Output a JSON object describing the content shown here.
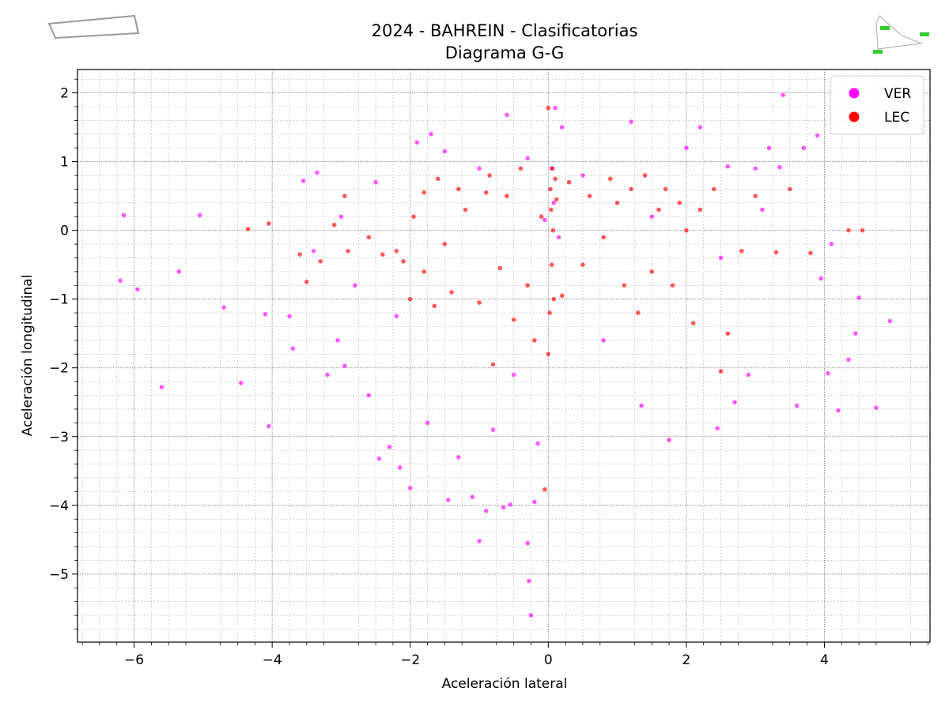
{
  "chart_data": {
    "type": "scatter",
    "title": "2024 - BAHREIN - Clasificatorias",
    "subtitle": "Diagrama G-G",
    "x_label": "Aceleración lateral",
    "y_label": "Aceleración longitudinal",
    "xlim": [
      -6.82,
      5.53
    ],
    "ylim": [
      -5.99,
      2.34
    ],
    "xticks": [
      {
        "value": -6,
        "label": "−6"
      },
      {
        "value": -4,
        "label": "−4"
      },
      {
        "value": -2,
        "label": "−2"
      },
      0,
      2,
      4
    ],
    "yticks": [
      {
        "value": -5,
        "label": "−5"
      },
      {
        "value": -4,
        "label": "−4"
      },
      {
        "value": -3,
        "label": "−3"
      },
      {
        "value": -2,
        "label": "−2"
      },
      {
        "value": -1,
        "label": "−1"
      },
      0,
      1,
      2
    ],
    "xticks_minor": [
      -6.75,
      -6.5,
      -6.25,
      -5.75,
      -5.5,
      -5.25,
      -4.75,
      -4.5,
      -4.25,
      -3.75,
      -3.5,
      -3.25,
      -2.75,
      -2.5,
      -2.25,
      -1.75,
      -1.5,
      -1.25,
      -0.75,
      -0.5,
      -0.25,
      0.25,
      0.5,
      0.75,
      1.25,
      1.5,
      1.75,
      2.25,
      2.5,
      2.75,
      3.25,
      3.5,
      3.75,
      4.25,
      4.5,
      4.75,
      5.25,
      5.5
    ],
    "yticks_minor": [
      -5.8,
      -5.6,
      -5.4,
      -5.2,
      -4.8,
      -4.6,
      -4.4,
      -4.2,
      -3.8,
      -3.6,
      -3.4,
      -3.2,
      -2.8,
      -2.6,
      -2.4,
      -2.2,
      -1.8,
      -1.6,
      -1.4,
      -1.2,
      -0.8,
      -0.6,
      -0.4,
      -0.2,
      0.2,
      0.4,
      0.6,
      0.8,
      1.2,
      1.4,
      1.6,
      1.8,
      2.2
    ],
    "grid": true,
    "legend": "upper right",
    "series": [
      {
        "name": "VER",
        "color": "#ff00ff",
        "x": [
          -6.2,
          -6.15,
          -5.95,
          -5.6,
          -5.35,
          -5.05,
          -4.7,
          -4.45,
          -4.1,
          -4.05,
          -3.75,
          -3.7,
          -3.55,
          -3.35,
          -3.2,
          -3.05,
          -2.95,
          -2.6,
          -2.45,
          -2.3,
          -2.15,
          -2.0,
          -1.75,
          -1.7,
          -1.45,
          -1.3,
          -1.1,
          -1.0,
          -0.9,
          -0.65,
          -0.55,
          -0.3,
          -0.28,
          -0.25,
          -0.2,
          -0.15,
          -0.6,
          0.1,
          0.2,
          -0.3,
          0.05,
          0.08,
          -0.05,
          0.15,
          1.2,
          1.35,
          1.75,
          2.2,
          2.0,
          2.45,
          2.6,
          2.7,
          2.9,
          3.0,
          3.2,
          3.35,
          3.4,
          3.6,
          3.7,
          3.9,
          3.95,
          4.05,
          4.1,
          4.2,
          4.35,
          4.45,
          4.5,
          4.75,
          4.95,
          -1.9,
          -1.5,
          -1.0,
          -2.5,
          -3.0,
          -2.8,
          0.5,
          0.8,
          1.5,
          2.5,
          3.1,
          -3.4,
          -2.2,
          -0.8,
          -0.5
        ],
        "values": [
          -0.73,
          0.22,
          -0.86,
          -2.28,
          -0.6,
          0.22,
          -1.12,
          -2.22,
          -1.22,
          -2.85,
          -1.25,
          -1.72,
          0.72,
          0.84,
          -2.1,
          -1.6,
          -1.97,
          -2.4,
          -3.32,
          -3.15,
          -3.45,
          -3.75,
          -2.8,
          1.4,
          -3.92,
          -3.3,
          -3.88,
          -4.52,
          -4.08,
          -4.03,
          -3.99,
          -4.55,
          -5.1,
          -5.6,
          -3.95,
          -3.1,
          1.68,
          1.78,
          1.5,
          1.05,
          0.9,
          0.4,
          0.15,
          -0.1,
          1.58,
          -2.55,
          -3.05,
          1.5,
          1.2,
          -2.88,
          0.93,
          -2.5,
          -2.1,
          0.9,
          1.2,
          0.92,
          1.97,
          -2.55,
          1.2,
          1.38,
          -0.7,
          -2.08,
          -0.2,
          -2.62,
          -1.88,
          -1.5,
          -0.98,
          -2.58,
          -1.32,
          1.28,
          1.15,
          0.9,
          0.7,
          0.2,
          -0.8,
          0.8,
          -1.6,
          0.2,
          -0.4,
          0.3,
          -0.3,
          -1.25,
          -2.9,
          -2.1
        ]
      },
      {
        "name": "LEC",
        "color": "#ff0000",
        "x": [
          -4.35,
          -4.05,
          -3.5,
          -3.3,
          -3.1,
          -2.9,
          -2.6,
          -2.4,
          -2.2,
          -2.1,
          -1.95,
          -1.8,
          -1.65,
          -1.5,
          -1.4,
          -1.3,
          -1.2,
          -1.0,
          -0.85,
          -0.7,
          -0.6,
          -0.5,
          -0.4,
          -0.3,
          -0.2,
          -0.1,
          0.0,
          0.0,
          0.02,
          0.03,
          0.04,
          0.05,
          0.06,
          0.07,
          0.08,
          0.1,
          0.12,
          -0.05,
          -1.8,
          -2.0,
          -0.8,
          0.2,
          0.3,
          0.5,
          0.6,
          0.8,
          1.0,
          1.2,
          1.3,
          1.4,
          1.5,
          1.6,
          1.7,
          1.8,
          1.9,
          2.0,
          2.1,
          2.2,
          2.4,
          2.5,
          2.6,
          2.8,
          3.0,
          3.3,
          3.5,
          3.8,
          4.35,
          4.55,
          -2.95,
          -3.6,
          1.1,
          0.9,
          -0.9,
          -1.6
        ],
        "values": [
          0.02,
          0.1,
          -0.75,
          -0.45,
          0.08,
          -0.3,
          -0.1,
          -0.35,
          -0.3,
          -0.45,
          0.2,
          -0.6,
          -1.1,
          -0.2,
          -0.9,
          0.6,
          0.3,
          -1.05,
          0.8,
          -0.55,
          0.5,
          -1.3,
          0.9,
          -0.8,
          -1.6,
          0.2,
          -1.8,
          1.78,
          -1.2,
          0.6,
          0.3,
          -0.5,
          0.9,
          0.0,
          -1.0,
          0.75,
          0.45,
          -3.77,
          0.55,
          -1.0,
          -1.95,
          -0.95,
          0.7,
          -0.5,
          0.5,
          -0.1,
          0.4,
          0.6,
          -1.2,
          0.8,
          -0.6,
          0.3,
          0.6,
          -0.8,
          0.4,
          0.0,
          -1.35,
          0.3,
          0.6,
          -2.05,
          -1.5,
          -0.3,
          0.5,
          -0.32,
          0.6,
          -0.33,
          0.0,
          0.0,
          0.5,
          -0.35,
          -0.8,
          0.75,
          0.55,
          0.75
        ]
      }
    ]
  }
}
